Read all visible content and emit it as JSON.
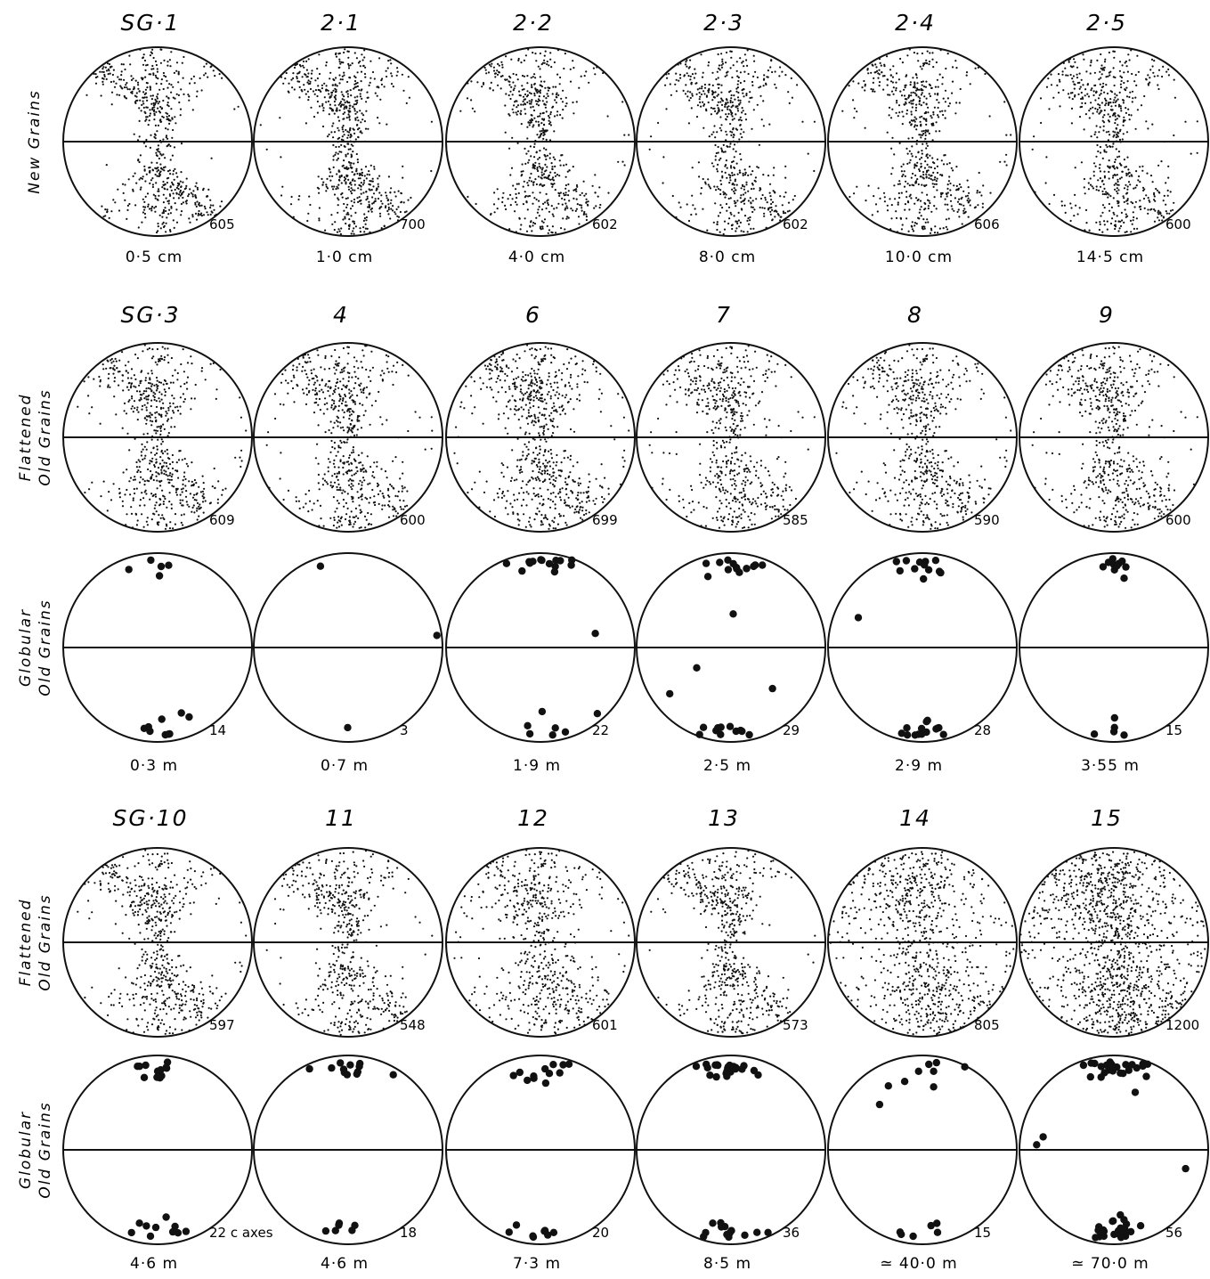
{
  "rows": [
    {
      "label": [
        "New Grains"
      ],
      "type": "scatter_fine",
      "diagrams": [
        {
          "title": "SG·1",
          "count": "605",
          "depth": "0·5 cm"
        },
        {
          "title": "2·1",
          "count": "700",
          "depth": "1·0 cm"
        },
        {
          "title": "2·2",
          "count": "602",
          "depth": "4·0 cm"
        },
        {
          "title": "2·3",
          "count": "602",
          "depth": "8·0 cm"
        },
        {
          "title": "2·4",
          "count": "606",
          "depth": "10·0 cm"
        },
        {
          "title": "2·5",
          "count": "600",
          "depth": "14·5 cm"
        }
      ]
    },
    {
      "label": [
        "Flattened",
        "Old Grains"
      ],
      "type": "scatter_fine",
      "diagrams": [
        {
          "title": "SG·3",
          "count": "609"
        },
        {
          "title": "4",
          "count": "600"
        },
        {
          "title": "6",
          "count": "699"
        },
        {
          "title": "7",
          "count": "585"
        },
        {
          "title": "8",
          "count": "590"
        },
        {
          "title": "9",
          "count": "600"
        }
      ]
    },
    {
      "label": [
        "Globular",
        "Old Grains"
      ],
      "type": "scatter_large",
      "diagrams": [
        {
          "count": "14",
          "depth": "0·3 m"
        },
        {
          "count": "3",
          "depth": "0·7 m"
        },
        {
          "count": "22",
          "depth": "1·9 m"
        },
        {
          "count": "29",
          "depth": "2·5 m"
        },
        {
          "count": "28",
          "depth": "2·9 m"
        },
        {
          "count": "15",
          "depth": "3·55 m"
        }
      ]
    },
    {
      "label": [
        "Flattened",
        "Old Grains"
      ],
      "type": "scatter_fine",
      "diagrams": [
        {
          "title": "SG·10",
          "count": "597"
        },
        {
          "title": "11",
          "count": "548"
        },
        {
          "title": "12",
          "count": "601"
        },
        {
          "title": "13",
          "count": "573"
        },
        {
          "title": "14",
          "count": "805"
        },
        {
          "title": "15",
          "count": "1200"
        }
      ]
    },
    {
      "label": [
        "Globular",
        "Old Grains"
      ],
      "type": "scatter_large",
      "diagrams": [
        {
          "count": "22 c axes",
          "depth": "4·6 m"
        },
        {
          "count": "18",
          "depth": "4·6 m"
        },
        {
          "count": "20",
          "depth": "7·3 m"
        },
        {
          "count": "36",
          "depth": "8·5 m"
        },
        {
          "count": "15",
          "depth": "≃ 40·0 m"
        },
        {
          "count": "56",
          "depth": "≃ 70·0 m"
        }
      ]
    }
  ]
}
